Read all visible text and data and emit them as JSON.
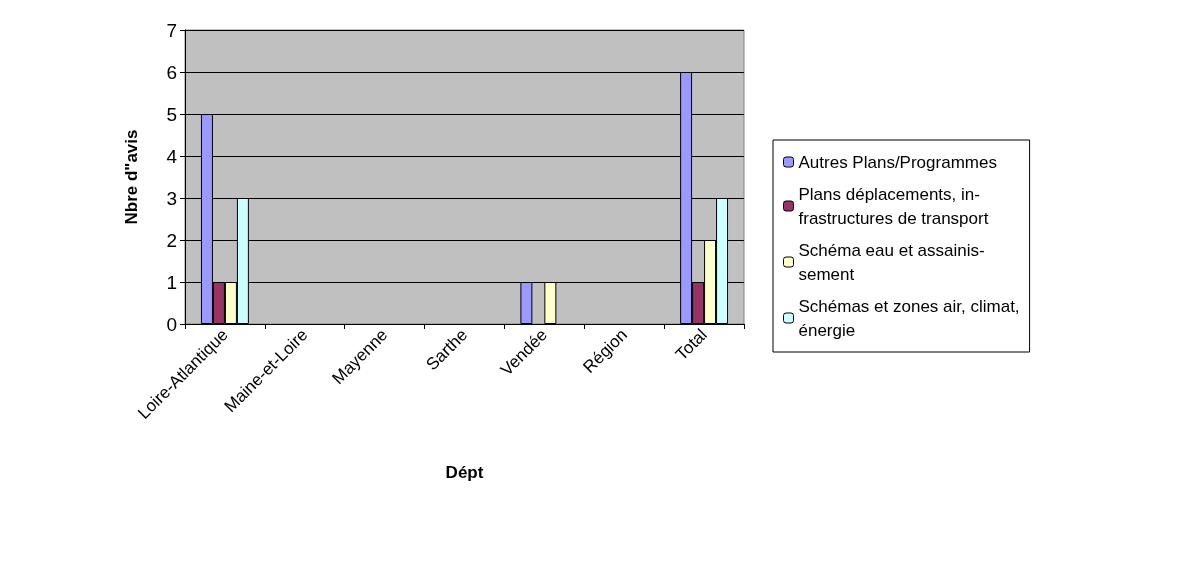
{
  "chart_data": {
    "type": "bar",
    "xlabel": "Dépt",
    "ylabel": "Nbre d\"avis",
    "categories": [
      "Loire-Atlantique",
      "Maine-et-Loire",
      "Mayenne",
      "Sarthe",
      "Vendée",
      "Région",
      "Total"
    ],
    "series": [
      {
        "name": "Autres Plans/Programmes",
        "color": "#9999ff",
        "values": [
          5,
          null,
          null,
          null,
          1,
          null,
          6
        ]
      },
      {
        "name": "Plans déplacements, in-\nfrastructures de transport",
        "color": "#993366",
        "values": [
          1,
          null,
          null,
          null,
          null,
          null,
          1
        ]
      },
      {
        "name": "Schéma eau et assainis-\nsement",
        "color": "#ffffcc",
        "values": [
          1,
          null,
          null,
          null,
          1,
          null,
          2
        ]
      },
      {
        "name": "Schémas et zones air, climat,\nénergie",
        "color": "#ccffff",
        "values": [
          3,
          null,
          null,
          null,
          null,
          null,
          3
        ]
      }
    ],
    "ylim": [
      0,
      7
    ],
    "yticks": [
      0,
      1,
      2,
      3,
      4,
      5,
      6,
      7
    ],
    "grid": "y",
    "legend": "right"
  }
}
